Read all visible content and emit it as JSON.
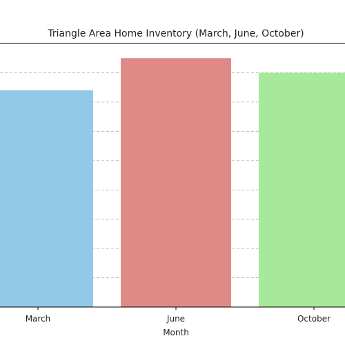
{
  "chart_data": {
    "type": "bar",
    "title": "Triangle Area Home Inventory (March, June, October)",
    "xlabel": "Month",
    "ylabel": "",
    "categories": [
      "March",
      "June",
      "October"
    ],
    "values": [
      74,
      85,
      80
    ],
    "colors": [
      "#93c9e8",
      "#e08a87",
      "#a6e99a"
    ],
    "ylim": [
      0,
      90
    ],
    "grid": true,
    "legend": "none"
  }
}
